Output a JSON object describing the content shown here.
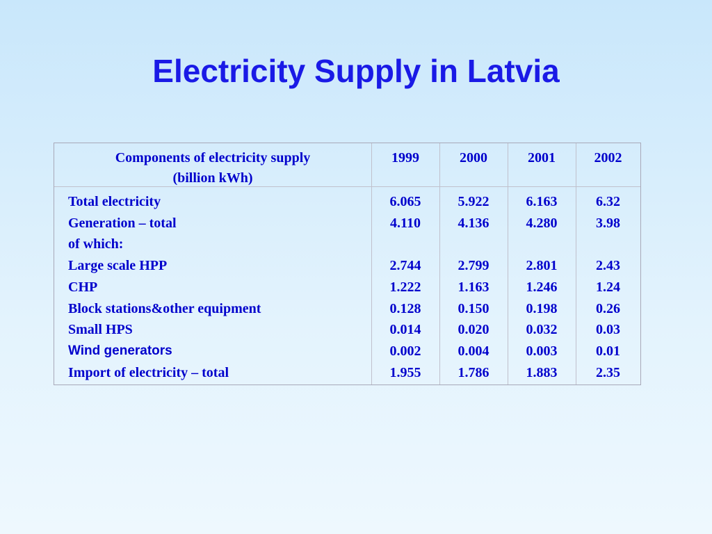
{
  "title": "Electricity Supply in Latvia",
  "table": {
    "header": {
      "label": [
        "Components of electricity supply",
        "(billion kWh)"
      ],
      "years": [
        "1999",
        "2000",
        "2001",
        "2002"
      ]
    },
    "rows": [
      {
        "label": "Total electricity",
        "values": [
          "6.065",
          "5.922",
          "6.163",
          "6.32"
        ]
      },
      {
        "label": "Generation – total",
        "values": [
          "4.110",
          "4.136",
          "4.280",
          "3.98"
        ]
      },
      {
        "label": "of which:",
        "values": [
          null,
          null,
          null,
          null
        ]
      },
      {
        "label": "Large scale HPP",
        "values": [
          "2.744",
          "2.799",
          "2.801",
          "2.43"
        ]
      },
      {
        "label": "CHP",
        "values": [
          "1.222",
          "1.163",
          "1.246",
          "1.24"
        ]
      },
      {
        "label": "Block stations&other equipment",
        "values": [
          "0.128",
          "0.150",
          "0.198",
          "0.26"
        ]
      },
      {
        "label": "Small HPS",
        "values": [
          "0.014",
          "0.020",
          "0.032",
          "0.03"
        ]
      },
      {
        "label": "Wind generators",
        "values": [
          "0.002",
          "0.004",
          "0.003",
          "0.01"
        ]
      },
      {
        "label": "Import of electricity – total",
        "values": [
          "1.955",
          "1.786",
          "1.883",
          "2.35"
        ]
      }
    ]
  }
}
